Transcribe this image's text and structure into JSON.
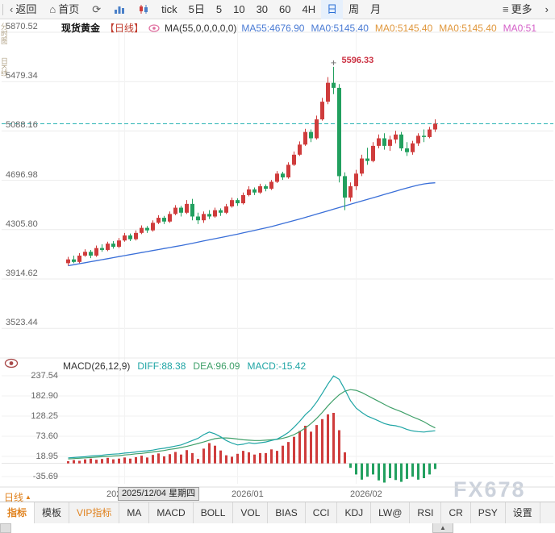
{
  "toolbar": {
    "back_label": "返回",
    "home_label": "首页",
    "tick_label": "tick",
    "periods": [
      "5日",
      "5",
      "10",
      "30",
      "60",
      "4H",
      "日",
      "周",
      "月"
    ],
    "active_period": "日",
    "more_label": "更多",
    "overflow_chevron": "›"
  },
  "left_strip": {
    "items": [
      "分时图",
      "日K线"
    ]
  },
  "header": {
    "title": "现货黄金",
    "period_tag": "【日线】",
    "ma_formula": "MA(55,0,0,0,0,0)",
    "ma_items": [
      {
        "text": "MA55:4676.90",
        "color": "#4a7bd4"
      },
      {
        "text": "MA0:5145.40",
        "color": "#4a7bd4"
      },
      {
        "text": "MA0:5145.40",
        "color": "#e0973c"
      },
      {
        "text": "MA0:5145.40",
        "color": "#e0973c"
      },
      {
        "text": "MA0:51",
        "color": "#d460c8"
      }
    ]
  },
  "macd_header": {
    "label": "MACD(26,12,9)",
    "items": [
      {
        "text": "DIFF:88.38",
        "color": "#1fa5a5"
      },
      {
        "text": "DEA:96.09",
        "color": "#40a06a"
      },
      {
        "text": "MACD:-15.42",
        "color": "#1fa5a5"
      }
    ]
  },
  "bottom": {
    "period_label": "日线",
    "tabs": [
      {
        "label": "指标",
        "color": "#e0821e",
        "active": true
      },
      {
        "label": "模板"
      },
      {
        "label": "VIP指标",
        "color": "#e0821e"
      },
      {
        "label": "MA"
      },
      {
        "label": "MACD"
      },
      {
        "label": "BOLL"
      },
      {
        "label": "VOL"
      },
      {
        "label": "BIAS"
      },
      {
        "label": "CCI"
      },
      {
        "label": "KDJ"
      },
      {
        "label": "LW@"
      },
      {
        "label": "RSI"
      },
      {
        "label": "CR"
      },
      {
        "label": "PSY"
      },
      {
        "label": "设置"
      }
    ]
  },
  "watermark": "FX678",
  "chart_data": {
    "type": "candlestick",
    "title": "现货黄金 日线",
    "main_y_axis": [
      5870.52,
      5479.34,
      5088.16,
      4696.98,
      4305.8,
      3914.62,
      3523.44
    ],
    "last_close": 5145.4,
    "high_point": {
      "index": 47,
      "value": 5596.33
    },
    "x_labels": [
      {
        "text": "202",
        "index": 9
      },
      {
        "text": "2026/01",
        "index": 30
      },
      {
        "text": "2026/02",
        "index": 51
      }
    ],
    "date_box": {
      "text": "2025/12/04 星期四",
      "index": 10
    },
    "colors": {
      "up": "#cf3c3c",
      "down": "#22a05f",
      "ma55": "#3a6fd8",
      "diff": "#1fa5a5",
      "dea": "#40a06a",
      "last_price_line": "#2ab3b3",
      "high_label": "#cc3344"
    },
    "candles": [
      [
        4040,
        4090,
        4020,
        4070
      ],
      [
        4070,
        4100,
        4040,
        4050
      ],
      [
        4050,
        4120,
        4040,
        4100
      ],
      [
        4100,
        4150,
        4090,
        4130
      ],
      [
        4130,
        4145,
        4080,
        4100
      ],
      [
        4100,
        4180,
        4090,
        4160
      ],
      [
        4160,
        4190,
        4130,
        4145
      ],
      [
        4145,
        4210,
        4135,
        4195
      ],
      [
        4195,
        4215,
        4155,
        4170
      ],
      [
        4170,
        4240,
        4160,
        4220
      ],
      [
        4220,
        4280,
        4210,
        4260
      ],
      [
        4260,
        4275,
        4215,
        4230
      ],
      [
        4230,
        4300,
        4220,
        4280
      ],
      [
        4280,
        4340,
        4270,
        4320
      ],
      [
        4320,
        4335,
        4280,
        4300
      ],
      [
        4300,
        4380,
        4290,
        4360
      ],
      [
        4360,
        4420,
        4350,
        4400
      ],
      [
        4400,
        4415,
        4350,
        4370
      ],
      [
        4370,
        4450,
        4360,
        4430
      ],
      [
        4430,
        4500,
        4420,
        4480
      ],
      [
        4480,
        4495,
        4410,
        4440
      ],
      [
        4440,
        4540,
        4430,
        4510
      ],
      [
        4510,
        4550,
        4380,
        4410
      ],
      [
        4410,
        4440,
        4350,
        4380
      ],
      [
        4380,
        4450,
        4360,
        4430
      ],
      [
        4430,
        4460,
        4390,
        4410
      ],
      [
        4410,
        4480,
        4400,
        4460
      ],
      [
        4460,
        4475,
        4415,
        4440
      ],
      [
        4440,
        4510,
        4430,
        4490
      ],
      [
        4490,
        4560,
        4480,
        4540
      ],
      [
        4540,
        4555,
        4495,
        4515
      ],
      [
        4515,
        4600,
        4505,
        4580
      ],
      [
        4580,
        4650,
        4570,
        4625
      ],
      [
        4625,
        4640,
        4580,
        4600
      ],
      [
        4600,
        4670,
        4590,
        4650
      ],
      [
        4650,
        4665,
        4610,
        4630
      ],
      [
        4630,
        4700,
        4620,
        4685
      ],
      [
        4685,
        4770,
        4675,
        4750
      ],
      [
        4750,
        4765,
        4700,
        4720
      ],
      [
        4720,
        4840,
        4710,
        4820
      ],
      [
        4820,
        4925,
        4810,
        4900
      ],
      [
        4900,
        5005,
        4890,
        4980
      ],
      [
        4980,
        5105,
        4970,
        5080
      ],
      [
        5080,
        5100,
        5000,
        5030
      ],
      [
        5030,
        5210,
        5020,
        5180
      ],
      [
        5180,
        5350,
        5170,
        5320
      ],
      [
        5320,
        5515,
        5300,
        5470
      ],
      [
        5470,
        5596.33,
        5380,
        5430
      ],
      [
        5430,
        5460,
        4680,
        4730
      ],
      [
        4730,
        4760,
        4460,
        4560
      ],
      [
        4560,
        4680,
        4530,
        4650
      ],
      [
        4650,
        4780,
        4620,
        4750
      ],
      [
        4750,
        4900,
        4730,
        4870
      ],
      [
        4870,
        4955,
        4820,
        4850
      ],
      [
        4850,
        5000,
        4840,
        4970
      ],
      [
        4970,
        5060,
        4950,
        5030
      ],
      [
        5030,
        5070,
        4940,
        4970
      ],
      [
        4970,
        5050,
        4930,
        5020
      ],
      [
        5020,
        5090,
        4990,
        5060
      ],
      [
        5060,
        5080,
        4930,
        4950
      ],
      [
        4950,
        5000,
        4890,
        4920
      ],
      [
        4920,
        5010,
        4900,
        4990
      ],
      [
        4990,
        5070,
        4970,
        5050
      ],
      [
        5050,
        5100,
        5000,
        5040
      ],
      [
        5040,
        5120,
        5030,
        5100
      ],
      [
        5100,
        5180,
        5080,
        5145.4
      ]
    ],
    "ma55": [
      4020,
      4028,
      4036,
      4044,
      4052,
      4060,
      4068,
      4076,
      4084,
      4092,
      4100,
      4108,
      4116,
      4124,
      4132,
      4140,
      4148,
      4156,
      4164,
      4172,
      4180,
      4189,
      4198,
      4207,
      4216,
      4225,
      4234,
      4243,
      4252,
      4261,
      4270,
      4280,
      4290,
      4300,
      4310,
      4320,
      4330,
      4342,
      4354,
      4366,
      4378,
      4390,
      4403,
      4416,
      4429,
      4442,
      4455,
      4468,
      4481,
      4494,
      4507,
      4520,
      4533,
      4546,
      4559,
      4572,
      4585,
      4598,
      4611,
      4624,
      4636,
      4648,
      4659,
      4668,
      4674,
      4676.9
    ],
    "macd": {
      "y_axis": [
        237.54,
        182.9,
        128.25,
        73.6,
        18.95,
        -35.69
      ],
      "diff": [
        15,
        16,
        17,
        18,
        20,
        21,
        22,
        24,
        25,
        26,
        28,
        29,
        31,
        33,
        34,
        36,
        39,
        41,
        44,
        47,
        50,
        56,
        62,
        68,
        78,
        85,
        80,
        72,
        62,
        55,
        50,
        52,
        56,
        54,
        56,
        58,
        62,
        66,
        74,
        84,
        98,
        114,
        132,
        146,
        166,
        190,
        215,
        237,
        228,
        200,
        170,
        150,
        138,
        128,
        122,
        115,
        108,
        104,
        102,
        98,
        92,
        88,
        86,
        85,
        87,
        88.38
      ],
      "dea": [
        12,
        13,
        14,
        15,
        16,
        17,
        18,
        19,
        20,
        21,
        23,
        24,
        26,
        27,
        29,
        31,
        33,
        35,
        38,
        40,
        43,
        46,
        50,
        54,
        58,
        63,
        67,
        69,
        69,
        68,
        66,
        64,
        63,
        62,
        62,
        63,
        64,
        65,
        68,
        72,
        78,
        86,
        96,
        108,
        122,
        138,
        156,
        172,
        186,
        196,
        200,
        198,
        192,
        184,
        176,
        168,
        160,
        152,
        146,
        140,
        133,
        126,
        120,
        113,
        104,
        96.09
      ],
      "hist": [
        6,
        9,
        7,
        11,
        13,
        10,
        12,
        15,
        11,
        13,
        16,
        13,
        17,
        21,
        16,
        23,
        27,
        19,
        25,
        31,
        24,
        36,
        28,
        12,
        40,
        55,
        48,
        35,
        22,
        18,
        26,
        34,
        30,
        24,
        28,
        28,
        38,
        34,
        48,
        58,
        72,
        88,
        102,
        86,
        104,
        120,
        133,
        137,
        90,
        30,
        -12,
        -30,
        -44,
        -36,
        -30,
        -46,
        -52,
        -40,
        -45,
        -50,
        -42,
        -36,
        -44,
        -40,
        -30,
        -15.42
      ]
    }
  }
}
